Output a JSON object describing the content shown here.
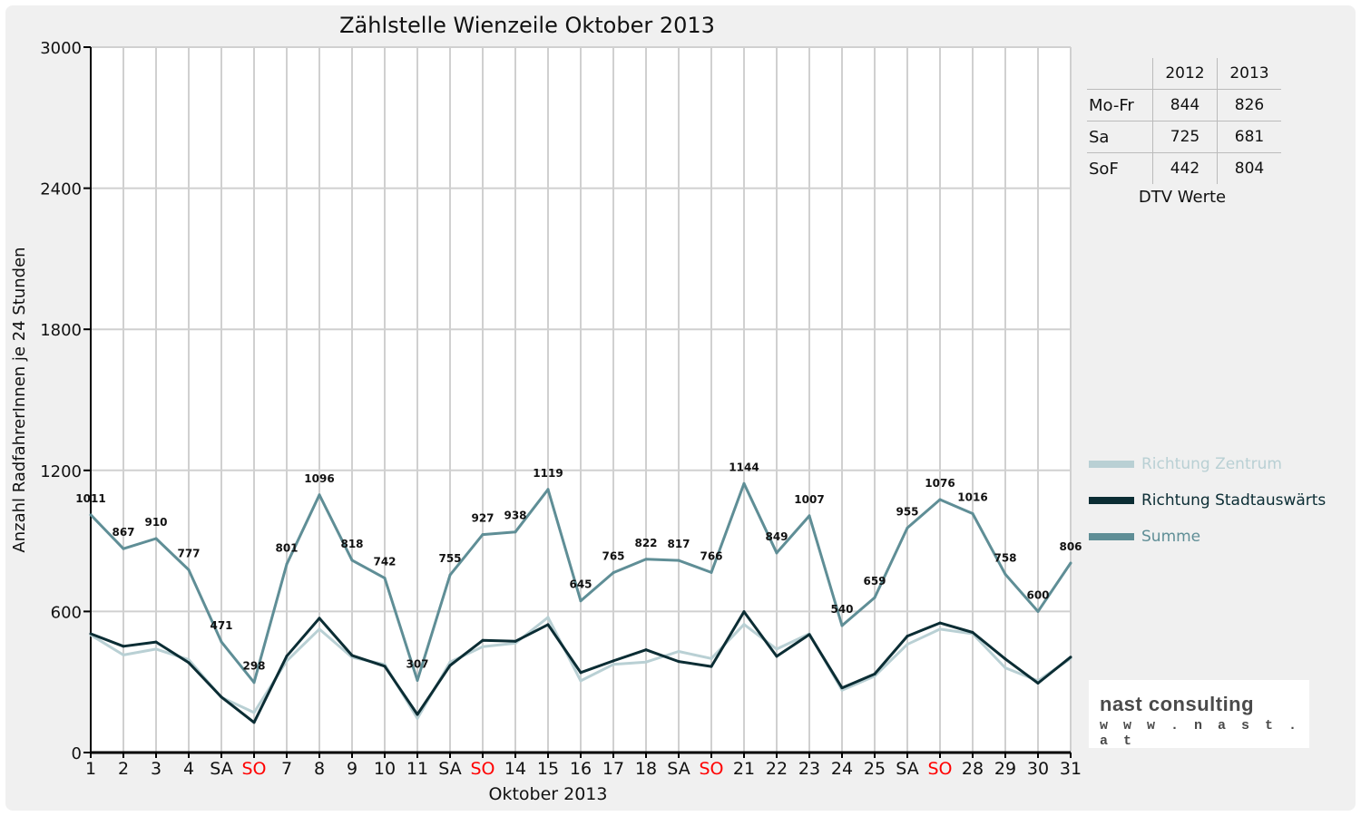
{
  "chart_data": {
    "type": "line",
    "title": "Zählstelle Wienzeile Oktober 2013",
    "xlabel": "Oktober 2013",
    "ylabel": "Anzahl RadfahrerInnen je 24 Stunden",
    "ylim": [
      0,
      3000
    ],
    "yticks": [
      0,
      600,
      1200,
      1800,
      2400,
      3000
    ],
    "grid": true,
    "legend_position": "right",
    "categories": [
      "1",
      "2",
      "3",
      "4",
      "SA",
      "SO",
      "7",
      "8",
      "9",
      "10",
      "11",
      "SA",
      "SO",
      "14",
      "15",
      "16",
      "17",
      "18",
      "SA",
      "SO",
      "21",
      "22",
      "23",
      "24",
      "25",
      "SA",
      "SO",
      "28",
      "29",
      "30",
      "31"
    ],
    "highlight_categories": [
      5,
      12,
      19,
      26
    ],
    "highlight_color": "#ff0000",
    "series": [
      {
        "name": "Richtung Zentrum",
        "color": "#b9d0d4",
        "width": 3,
        "values": [
          500,
          415,
          440,
          395,
          235,
          170,
          390,
          525,
          405,
          375,
          145,
          385,
          450,
          465,
          575,
          305,
          375,
          385,
          430,
          400,
          545,
          440,
          505,
          265,
          325,
          460,
          525,
          505,
          360,
          305,
          400
        ]
      },
      {
        "name": "Richtung Stadtauswärts",
        "color": "#0b2d34",
        "width": 3,
        "values": [
          505,
          452,
          470,
          382,
          236,
          128,
          410,
          571,
          413,
          367,
          162,
          370,
          477,
          473,
          544,
          340,
          390,
          437,
          387,
          366,
          599,
          409,
          502,
          275,
          334,
          495,
          551,
          511,
          398,
          295,
          406
        ]
      },
      {
        "name": "Summe",
        "color": "#5f8e96",
        "width": 3,
        "values": [
          1011,
          867,
          910,
          777,
          471,
          298,
          801,
          1096,
          818,
          742,
          307,
          755,
          927,
          938,
          1119,
          645,
          765,
          822,
          817,
          766,
          1144,
          849,
          1007,
          540,
          659,
          955,
          1076,
          1016,
          758,
          600,
          806
        ],
        "data_labels": [
          "1011",
          "867",
          "910",
          "777",
          "471",
          "298",
          "801",
          "1096",
          "818",
          "742",
          "307",
          "755",
          "927",
          "938",
          "1119",
          "645",
          "765",
          "822",
          "817",
          "766",
          "1144",
          "849",
          "1007",
          "540",
          "659",
          "955",
          "1076",
          "1016",
          "758",
          "600",
          "806"
        ]
      }
    ]
  },
  "dtv_table": {
    "col_headers": [
      "2012",
      "2013"
    ],
    "rows": [
      {
        "label": "Mo-Fr",
        "v2012": "844",
        "v2013": "826"
      },
      {
        "label": "Sa",
        "v2012": "725",
        "v2013": "681"
      },
      {
        "label": "SoF",
        "v2012": "442",
        "v2013": "804"
      }
    ],
    "caption": "DTV Werte"
  },
  "logo": {
    "name": "nast consulting",
    "url": "w w w . n a s t . a t"
  }
}
